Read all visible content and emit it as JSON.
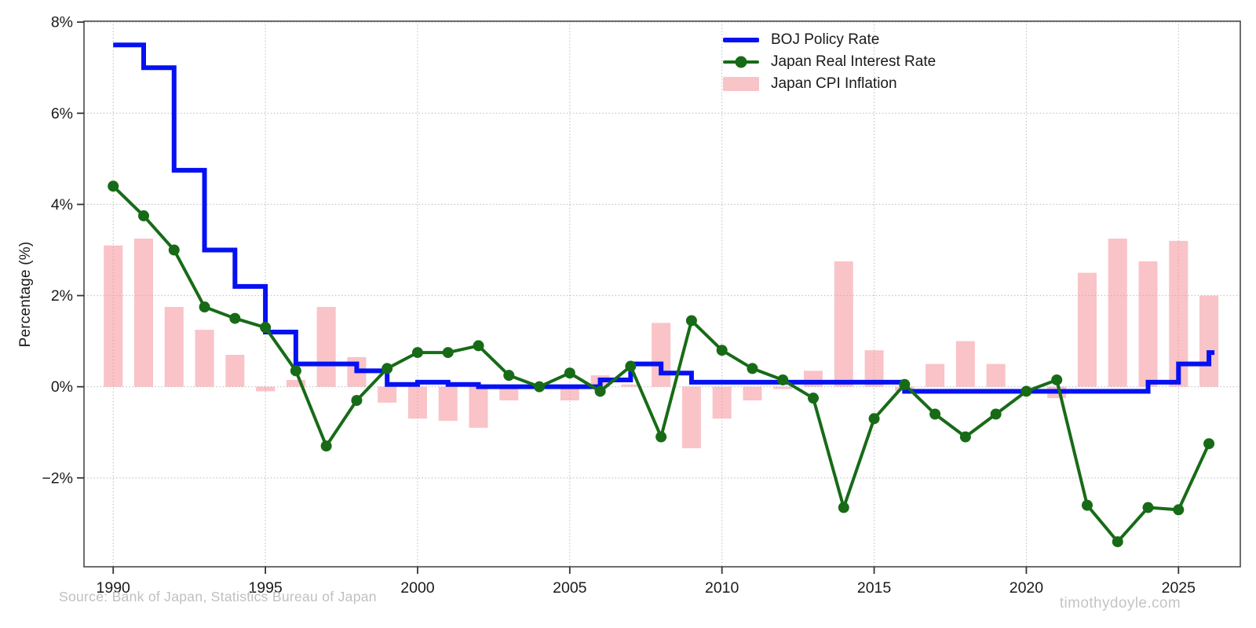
{
  "chart_data": {
    "type": "combo",
    "x_years": [
      1990,
      1991,
      1992,
      1993,
      1994,
      1995,
      1996,
      1997,
      1998,
      1999,
      2000,
      2001,
      2002,
      2003,
      2004,
      2005,
      2006,
      2007,
      2008,
      2009,
      2010,
      2011,
      2012,
      2013,
      2014,
      2015,
      2016,
      2017,
      2018,
      2019,
      2020,
      2021,
      2022,
      2023,
      2024,
      2025,
      2026
    ],
    "series": [
      {
        "name": "BOJ Policy Rate",
        "type": "step",
        "color": "#0511f2",
        "line_width": 6,
        "values": [
          7.5,
          7.0,
          4.75,
          3.0,
          2.2,
          1.2,
          0.5,
          0.5,
          0.35,
          0.05,
          0.1,
          0.05,
          0.0,
          0.0,
          0.0,
          0.0,
          0.15,
          0.5,
          0.3,
          0.1,
          0.1,
          0.1,
          0.1,
          0.1,
          0.1,
          0.1,
          -0.1,
          -0.1,
          -0.1,
          -0.1,
          -0.1,
          -0.1,
          -0.1,
          -0.1,
          0.1,
          0.5,
          0.75
        ]
      },
      {
        "name": "Japan Real Interest Rate",
        "type": "line",
        "color": "#176b17",
        "line_width": 4,
        "marker": "circle",
        "marker_radius": 7,
        "values": [
          4.4,
          3.75,
          3.0,
          1.75,
          1.5,
          1.3,
          0.35,
          -1.3,
          -0.3,
          0.4,
          0.75,
          0.75,
          0.9,
          0.25,
          0.0,
          0.3,
          -0.1,
          0.45,
          -1.1,
          1.45,
          0.8,
          0.4,
          0.15,
          -0.25,
          -2.65,
          -0.7,
          0.05,
          -0.6,
          -1.1,
          -0.6,
          -0.1,
          0.15,
          -2.6,
          -3.4,
          -2.65,
          -2.7,
          -1.25
        ]
      },
      {
        "name": "Japan CPI Inflation",
        "type": "bar",
        "color": "#f5969d",
        "opacity": 0.56,
        "bar_width_years": 0.62,
        "values": [
          3.1,
          3.25,
          1.75,
          1.25,
          0.7,
          -0.1,
          0.15,
          1.75,
          0.65,
          -0.35,
          -0.7,
          -0.75,
          -0.9,
          -0.3,
          0.0,
          -0.3,
          0.25,
          0.05,
          1.4,
          -1.35,
          -0.7,
          -0.3,
          -0.05,
          0.35,
          2.75,
          0.8,
          -0.1,
          0.5,
          1.0,
          0.5,
          0.0,
          -0.25,
          2.5,
          3.25,
          2.75,
          3.2,
          2.0
        ]
      }
    ],
    "axes": {
      "ylabel": "Percentage (%)",
      "x_min": 1989.04,
      "x_max": 2027.03,
      "y_min": -3.95,
      "y_max": 8.02,
      "grid": true,
      "yticks": [
        {
          "value": 8,
          "label": "8%"
        },
        {
          "value": 6,
          "label": "6%"
        },
        {
          "value": 4,
          "label": "4%"
        },
        {
          "value": 2,
          "label": "2%"
        },
        {
          "value": 0,
          "label": "0%"
        },
        {
          "value": -2,
          "label": "−2%"
        }
      ],
      "xticks": [
        {
          "value": 1990,
          "label": "1990"
        },
        {
          "value": 1995,
          "label": "1995"
        },
        {
          "value": 2000,
          "label": "2000"
        },
        {
          "value": 2005,
          "label": "2005"
        },
        {
          "value": 2010,
          "label": "2010"
        },
        {
          "value": 2015,
          "label": "2015"
        },
        {
          "value": 2020,
          "label": "2020"
        },
        {
          "value": 2025,
          "label": "2025"
        }
      ]
    },
    "legend_position": "upper-right-of-center"
  },
  "footer": {
    "source": "Source: Bank of Japan, Statistics Bureau of Japan",
    "watermark": "timothydoyle.com"
  },
  "colors": {
    "background": "#ffffff",
    "grid": "#c6c6c6",
    "spine": "#4a4a4a",
    "tick": "#333333",
    "tick_label": "#1a1a1a",
    "footer_text": "#bfbfbf"
  }
}
